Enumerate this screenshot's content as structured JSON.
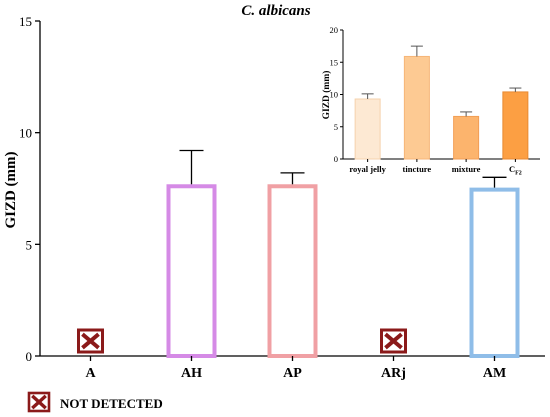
{
  "chart_data": [
    {
      "type": "bar",
      "title": "C. albicans",
      "xlabel": "",
      "ylabel": "GIZD (mm)",
      "ylim": [
        0,
        15
      ],
      "yticks": [
        0,
        5,
        10,
        15
      ],
      "grid": false,
      "categories": [
        "A",
        "AH",
        "AP",
        "ARj",
        "AM"
      ],
      "values": [
        0,
        7.6,
        7.6,
        0,
        7.45
      ],
      "errors": [
        0,
        1.6,
        0.6,
        0,
        0.55
      ],
      "not_detected": [
        true,
        false,
        false,
        true,
        false
      ],
      "bar_style": "outline",
      "colors": [
        "#000000",
        "#d58ae6",
        "#f0a0a4",
        "#000000",
        "#8fbde8"
      ]
    },
    {
      "type": "bar",
      "title": "",
      "xlabel": "",
      "ylabel": "GIZD (mm)",
      "ylim": [
        0,
        20
      ],
      "yticks": [
        0,
        5,
        10,
        15,
        20
      ],
      "grid": false,
      "categories": [
        "royal jelly",
        "tincture",
        "mixture",
        "C"
      ],
      "category_subscripts": [
        "",
        "",
        "",
        "F2"
      ],
      "values": [
        9.3,
        15.9,
        6.6,
        10.4
      ],
      "errors": [
        0.8,
        1.6,
        0.7,
        0.6
      ],
      "bar_style": "filled",
      "colors": [
        "#fde9d3",
        "#fdca93",
        "#fcb46d",
        "#fc9f43"
      ],
      "edge_colors": [
        "#f5d2ad",
        "#f6b578",
        "#f29e55",
        "#e88a33"
      ]
    }
  ],
  "legend": {
    "label": "NOT DETECTED",
    "icon": "red-x-box-icon",
    "icon_color": "#8b1a1a",
    "placement": "bottom-left"
  }
}
